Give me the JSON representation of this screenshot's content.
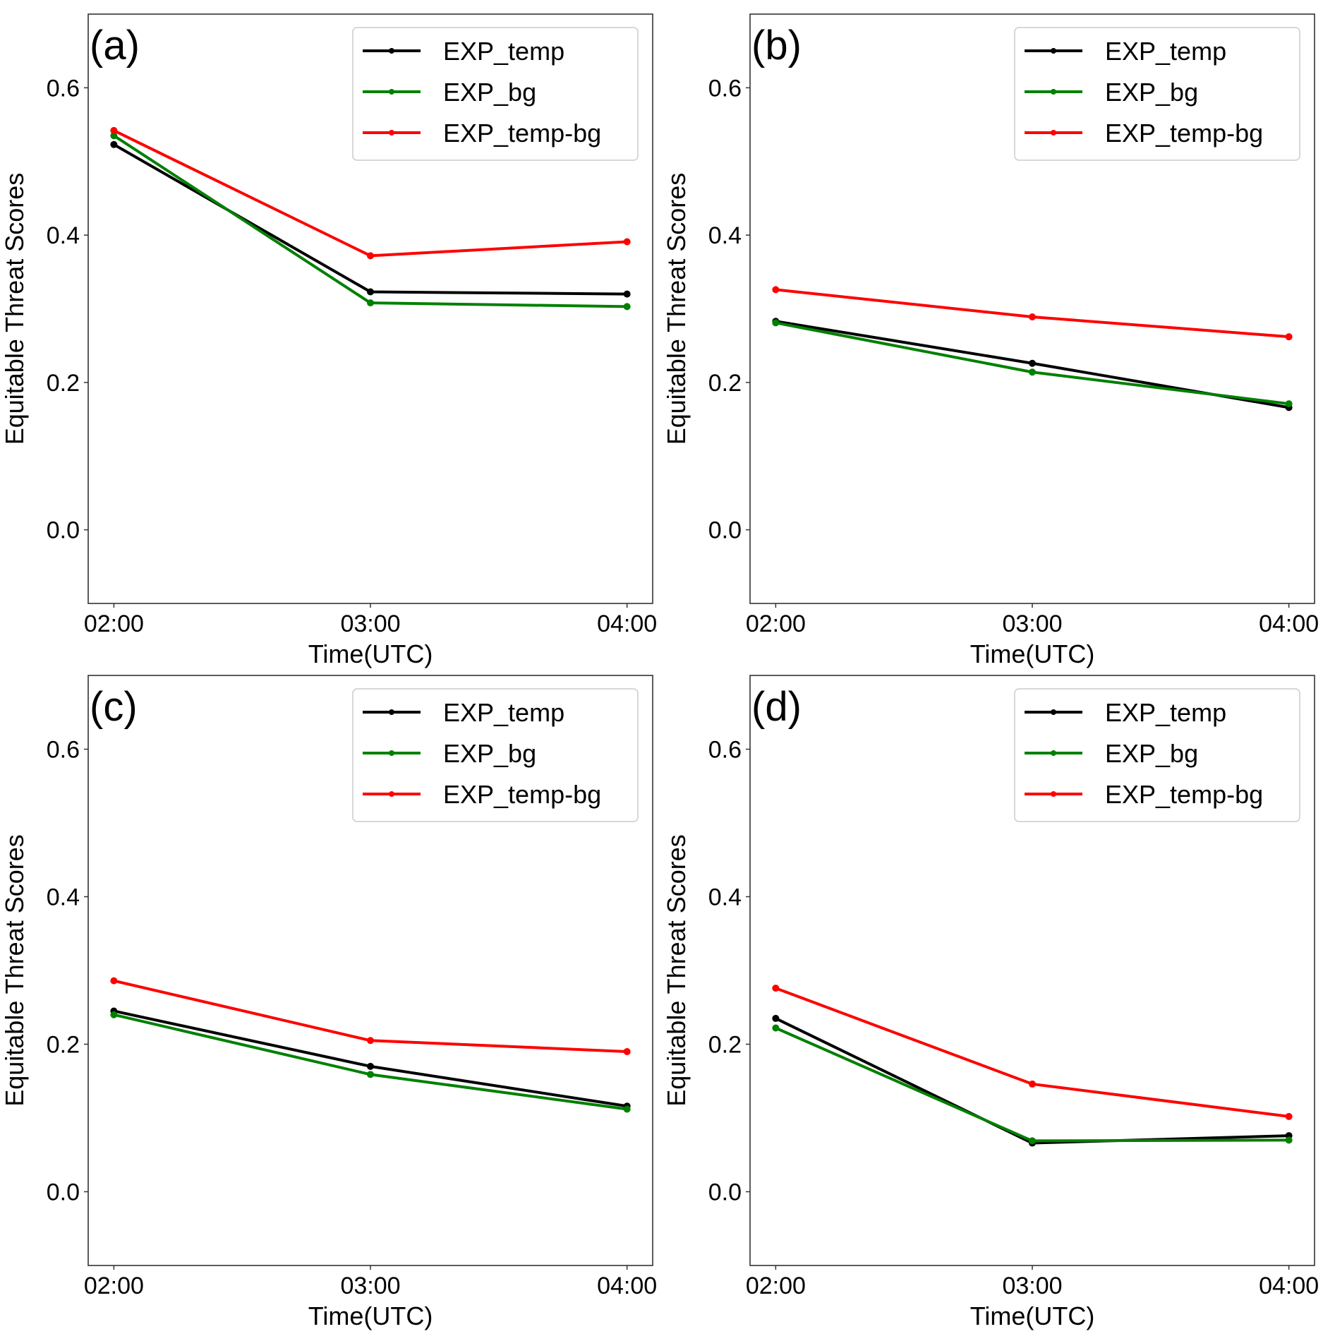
{
  "chart_data": [
    {
      "type": "line",
      "panel_label": "(a)",
      "categories": [
        "02:00",
        "03:00",
        "04:00"
      ],
      "xlabel": "Time(UTC)",
      "ylabel": "Equitable Threat Scores",
      "ylim": [
        -0.1,
        0.7
      ],
      "yticks": [
        "0.0",
        "0.2",
        "0.4",
        "0.6"
      ],
      "ytick_values": [
        0.0,
        0.2,
        0.4,
        0.6
      ],
      "grid": false,
      "legend_position": "top-right",
      "series": [
        {
          "name": "EXP_temp",
          "color": "#000000",
          "values": [
            0.523,
            0.323,
            0.32
          ]
        },
        {
          "name": "EXP_bg",
          "color": "#008000",
          "values": [
            0.535,
            0.308,
            0.303
          ]
        },
        {
          "name": "EXP_temp-bg",
          "color": "#ff0000",
          "values": [
            0.542,
            0.372,
            0.391
          ]
        }
      ]
    },
    {
      "type": "line",
      "panel_label": "(b)",
      "categories": [
        "02:00",
        "03:00",
        "04:00"
      ],
      "xlabel": "Time(UTC)",
      "ylabel": "Equitable Threat Scores",
      "ylim": [
        -0.1,
        0.7
      ],
      "yticks": [
        "0.0",
        "0.2",
        "0.4",
        "0.6"
      ],
      "ytick_values": [
        0.0,
        0.2,
        0.4,
        0.6
      ],
      "grid": false,
      "legend_position": "top-right",
      "series": [
        {
          "name": "EXP_temp",
          "color": "#000000",
          "values": [
            0.283,
            0.226,
            0.166
          ]
        },
        {
          "name": "EXP_bg",
          "color": "#008000",
          "values": [
            0.281,
            0.214,
            0.171
          ]
        },
        {
          "name": "EXP_temp-bg",
          "color": "#ff0000",
          "values": [
            0.326,
            0.289,
            0.262
          ]
        }
      ]
    },
    {
      "type": "line",
      "panel_label": "(c)",
      "categories": [
        "02:00",
        "03:00",
        "04:00"
      ],
      "xlabel": "Time(UTC)",
      "ylabel": "Equitable Threat Scores",
      "ylim": [
        -0.1,
        0.7
      ],
      "yticks": [
        "0.0",
        "0.2",
        "0.4",
        "0.6"
      ],
      "ytick_values": [
        0.0,
        0.2,
        0.4,
        0.6
      ],
      "grid": false,
      "legend_position": "top-right",
      "series": [
        {
          "name": "EXP_temp",
          "color": "#000000",
          "values": [
            0.245,
            0.17,
            0.116
          ]
        },
        {
          "name": "EXP_bg",
          "color": "#008000",
          "values": [
            0.24,
            0.159,
            0.112
          ]
        },
        {
          "name": "EXP_temp-bg",
          "color": "#ff0000",
          "values": [
            0.286,
            0.205,
            0.19
          ]
        }
      ]
    },
    {
      "type": "line",
      "panel_label": "(d)",
      "categories": [
        "02:00",
        "03:00",
        "04:00"
      ],
      "xlabel": "Time(UTC)",
      "ylabel": "Equitable Threat Scores",
      "ylim": [
        -0.1,
        0.7
      ],
      "yticks": [
        "0.0",
        "0.2",
        "0.4",
        "0.6"
      ],
      "ytick_values": [
        0.0,
        0.2,
        0.4,
        0.6
      ],
      "grid": false,
      "legend_position": "top-right",
      "series": [
        {
          "name": "EXP_temp",
          "color": "#000000",
          "values": [
            0.235,
            0.066,
            0.076
          ]
        },
        {
          "name": "EXP_bg",
          "color": "#008000",
          "values": [
            0.222,
            0.069,
            0.07
          ]
        },
        {
          "name": "EXP_temp-bg",
          "color": "#ff0000",
          "values": [
            0.276,
            0.146,
            0.102
          ]
        }
      ]
    }
  ]
}
